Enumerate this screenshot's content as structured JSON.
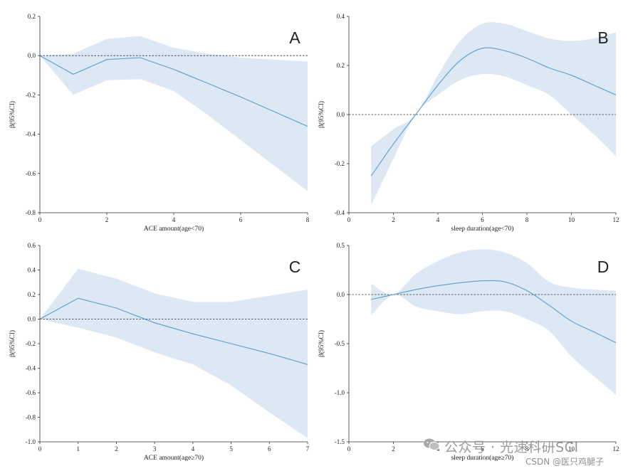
{
  "colors": {
    "band": "#dce9f4",
    "line": "#5b9bd0",
    "axis": "#333333",
    "ref": "#333333"
  },
  "watermark": {
    "line1": "公众号 · 光速科研SCI",
    "line2": "CSDN @医只鸡腿子",
    "icon": "wechat-icon"
  },
  "chart_data": [
    {
      "panel": "A",
      "type": "line",
      "title": "",
      "xlabel": "ACE amount(age<70)",
      "ylabel": "β(95%CI)",
      "xlim": [
        0,
        8
      ],
      "ylim": [
        -0.8,
        0.2
      ],
      "xticks": [
        0,
        2,
        4,
        6,
        8
      ],
      "yticks": [
        0.2,
        0.0,
        -0.2,
        -0.4,
        -0.6,
        -0.8
      ],
      "ytick_labels": [
        "0.2",
        "0.0",
        "-0.2",
        "-0.4",
        "-0.6",
        "-0.8"
      ],
      "reference_line": 0,
      "x": [
        0,
        1,
        2,
        3,
        4,
        5,
        6,
        7,
        8
      ],
      "estimate": [
        0,
        -0.095,
        -0.02,
        -0.01,
        -0.07,
        -0.14,
        -0.21,
        -0.285,
        -0.36
      ],
      "ci_upper": [
        0,
        0.01,
        0.085,
        0.1,
        0.04,
        0.01,
        -0.01,
        -0.02,
        -0.03
      ],
      "ci_lower": [
        0,
        -0.2,
        -0.125,
        -0.12,
        -0.18,
        -0.3,
        -0.43,
        -0.56,
        -0.69
      ]
    },
    {
      "panel": "B",
      "type": "line",
      "title": "",
      "xlabel": "sleep duration(age<70)",
      "ylabel": "β(95%CI)",
      "xlim": [
        0,
        12
      ],
      "ylim": [
        -0.4,
        0.4
      ],
      "xticks": [
        0,
        2,
        4,
        6,
        8,
        10,
        12
      ],
      "yticks": [
        0.4,
        0.2,
        0.0,
        -0.2,
        -0.4
      ],
      "ytick_labels": [
        "0.4",
        "0.2",
        "0.0",
        "-0.2",
        "-0.4"
      ],
      "reference_line": 0,
      "x": [
        1,
        2,
        3,
        4,
        5,
        6,
        7,
        8,
        9,
        10,
        11,
        12
      ],
      "estimate": [
        -0.25,
        -0.12,
        0.0,
        0.12,
        0.22,
        0.27,
        0.26,
        0.23,
        0.19,
        0.16,
        0.12,
        0.08
      ],
      "ci_upper": [
        -0.13,
        -0.06,
        0.0,
        0.16,
        0.3,
        0.37,
        0.37,
        0.34,
        0.31,
        0.3,
        0.31,
        0.335
      ],
      "ci_lower": [
        -0.37,
        -0.18,
        0.0,
        0.08,
        0.14,
        0.165,
        0.155,
        0.12,
        0.08,
        0.0,
        -0.08,
        -0.17
      ]
    },
    {
      "panel": "C",
      "type": "line",
      "title": "",
      "xlabel": "ACE amount(age≥70)",
      "ylabel": "β(95%CI)",
      "xlim": [
        0,
        7
      ],
      "ylim": [
        -1.0,
        0.6
      ],
      "xticks": [
        0,
        1,
        2,
        3,
        4,
        5,
        6,
        7
      ],
      "yticks": [
        0.6,
        0.4,
        0.2,
        0.0,
        -0.2,
        -0.4,
        -0.6,
        -0.8,
        -1.0
      ],
      "ytick_labels": [
        "0.6",
        "0.4",
        "0.2",
        "0.0",
        "-0.2",
        "-0.4",
        "-0.6",
        "-0.8",
        "-1.0"
      ],
      "reference_line": 0,
      "x": [
        0,
        1,
        2,
        3,
        4,
        5,
        6,
        7
      ],
      "estimate": [
        0,
        0.17,
        0.09,
        -0.03,
        -0.12,
        -0.2,
        -0.28,
        -0.37
      ],
      "ci_upper": [
        0,
        0.41,
        0.33,
        0.21,
        0.14,
        0.14,
        0.19,
        0.24
      ],
      "ci_lower": [
        0,
        -0.07,
        -0.15,
        -0.27,
        -0.37,
        -0.54,
        -0.76,
        -0.97
      ]
    },
    {
      "panel": "D",
      "type": "line",
      "title": "",
      "xlabel": "sleep duration(age≥70)",
      "ylabel": "β(95%CI)",
      "xlim": [
        0,
        12
      ],
      "ylim": [
        -1.5,
        0.5
      ],
      "xticks": [
        0,
        2,
        4,
        6,
        8,
        10,
        12
      ],
      "yticks": [
        0.5,
        0.0,
        -0.5,
        -1.0,
        -1.5
      ],
      "ytick_labels": [
        "0.5",
        "0.0",
        "-0.5",
        "-1.0",
        "-1.5"
      ],
      "reference_line": 0,
      "x": [
        1,
        2,
        3,
        4,
        5,
        6,
        7,
        8,
        9,
        10,
        11,
        12
      ],
      "estimate": [
        -0.05,
        0.0,
        0.05,
        0.09,
        0.12,
        0.14,
        0.13,
        0.04,
        -0.11,
        -0.27,
        -0.38,
        -0.49
      ],
      "ci_upper": [
        0.11,
        0.0,
        0.21,
        0.34,
        0.43,
        0.46,
        0.43,
        0.32,
        0.13,
        0.07,
        0.05,
        0.04
      ],
      "ci_lower": [
        -0.21,
        0.0,
        -0.12,
        -0.17,
        -0.2,
        -0.17,
        -0.17,
        -0.25,
        -0.37,
        -0.63,
        -0.83,
        -1.02
      ]
    }
  ]
}
